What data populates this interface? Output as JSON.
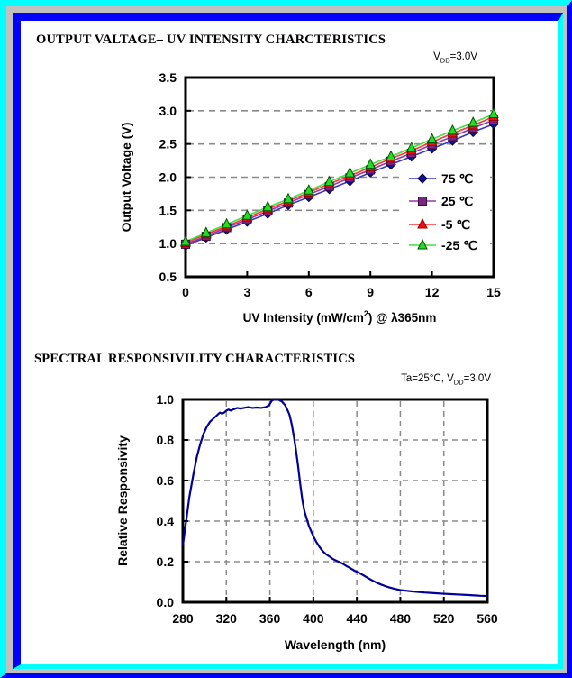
{
  "page": {
    "frame_colors": {
      "cyan": "#00ffff",
      "blue": "#0000ff",
      "gray": "#c0c0c0"
    },
    "section1": {
      "title": "OUTPUT VALTAGE– UV INTENSITY CHARCTERISTICS",
      "condition": {
        "prefix": "V",
        "sub": "DD",
        "suffix": "=3.0V"
      }
    },
    "section2": {
      "title": "SPECTRAL RESPONSIVILITY CHARACTERISTICS",
      "condition": {
        "prefix": "Ta=25°C, V",
        "sub": "DD",
        "suffix": "=3.0V"
      }
    }
  },
  "chart_data": [
    {
      "type": "line",
      "title": "Output Voltage - UV Intensity",
      "ylabel": "Output Voltage (V)",
      "xlabel_parts": [
        {
          "t": "UV Intensity (mW/cm"
        },
        {
          "t": "2",
          "sup": true
        },
        {
          "t": ") @ λ365nm"
        }
      ],
      "xlim": [
        0,
        15
      ],
      "ylim": [
        0.5,
        3.5
      ],
      "x_ticks": [
        0,
        3,
        6,
        9,
        12,
        15
      ],
      "x_tick_labels": [
        "0",
        "3",
        "6",
        "9",
        "12",
        "15"
      ],
      "y_ticks": [
        0.5,
        1.0,
        1.5,
        2.0,
        2.5,
        3.0,
        3.5
      ],
      "y_tick_labels": [
        "0.5",
        "1.0",
        "1.5",
        "2.0",
        "2.5",
        "3.0",
        "3.5"
      ],
      "gridlines_y": [
        1.0,
        1.5,
        2.0,
        2.5,
        3.0
      ],
      "grid_color": "#8a8a8a",
      "axis_color": "#000000",
      "legend_position": "inside-right",
      "x": [
        0,
        1,
        2,
        3,
        4,
        5,
        6,
        7,
        8,
        9,
        10,
        11,
        12,
        13,
        14,
        15
      ],
      "series": [
        {
          "name": "75 ℃",
          "marker": "diamond",
          "line_color": "#3a3ab8",
          "marker_color": "#141491",
          "marker_edge": "#00004d",
          "values": [
            0.97,
            1.09,
            1.21,
            1.33,
            1.45,
            1.58,
            1.7,
            1.82,
            1.94,
            2.07,
            2.19,
            2.31,
            2.43,
            2.55,
            2.68,
            2.8
          ]
        },
        {
          "name": "25 ℃",
          "marker": "square",
          "line_color": "#9933aa",
          "marker_color": "#7b2483",
          "marker_edge": "#3a0b40",
          "values": [
            0.99,
            1.11,
            1.24,
            1.36,
            1.49,
            1.61,
            1.74,
            1.86,
            1.99,
            2.11,
            2.24,
            2.36,
            2.49,
            2.61,
            2.74,
            2.86
          ]
        },
        {
          "name": "-5 ℃",
          "marker": "triangle",
          "line_color": "#ff3333",
          "marker_color": "#ee1111",
          "marker_edge": "#990000",
          "values": [
            1.01,
            1.14,
            1.26,
            1.39,
            1.52,
            1.64,
            1.77,
            1.9,
            2.02,
            2.15,
            2.28,
            2.4,
            2.53,
            2.66,
            2.78,
            2.91
          ]
        },
        {
          "name": "-25 ℃",
          "marker": "triangle",
          "line_color": "#44dd44",
          "marker_color": "#22dd22",
          "marker_edge": "#005500",
          "values": [
            1.03,
            1.16,
            1.29,
            1.42,
            1.55,
            1.67,
            1.8,
            1.93,
            2.06,
            2.19,
            2.31,
            2.44,
            2.57,
            2.7,
            2.82,
            2.95
          ]
        }
      ]
    },
    {
      "type": "line",
      "title": "Spectral Responsivity",
      "ylabel": "Relative Responsivity",
      "xlabel": "Wavelength (nm)",
      "xlim": [
        280,
        560
      ],
      "ylim": [
        0.0,
        1.0
      ],
      "x_ticks": [
        280,
        320,
        360,
        400,
        440,
        480,
        520,
        560
      ],
      "x_tick_labels": [
        "280",
        "320",
        "360",
        "400",
        "440",
        "480",
        "520",
        "560"
      ],
      "y_ticks": [
        0.0,
        0.2,
        0.4,
        0.6,
        0.8,
        1.0
      ],
      "y_tick_labels": [
        "0.0",
        "0.2",
        "0.4",
        "0.6",
        "0.8",
        "1.0"
      ],
      "gridlines_y": [
        0.2,
        0.4,
        0.6,
        0.8
      ],
      "gridlines_x": [
        320,
        360,
        400,
        440,
        480,
        520
      ],
      "grid_color": "#8a8a8a",
      "axis_color": "#000000",
      "line_color": "#000099",
      "points": [
        [
          280,
          0.28
        ],
        [
          282,
          0.36
        ],
        [
          284,
          0.44
        ],
        [
          286,
          0.52
        ],
        [
          288,
          0.58
        ],
        [
          290,
          0.64
        ],
        [
          293,
          0.72
        ],
        [
          296,
          0.78
        ],
        [
          299,
          0.83
        ],
        [
          302,
          0.865
        ],
        [
          305,
          0.89
        ],
        [
          308,
          0.905
        ],
        [
          311,
          0.92
        ],
        [
          314,
          0.935
        ],
        [
          316,
          0.93
        ],
        [
          318,
          0.935
        ],
        [
          320,
          0.945
        ],
        [
          322,
          0.95
        ],
        [
          324,
          0.945
        ],
        [
          327,
          0.952
        ],
        [
          330,
          0.958
        ],
        [
          333,
          0.955
        ],
        [
          336,
          0.958
        ],
        [
          340,
          0.962
        ],
        [
          344,
          0.958
        ],
        [
          348,
          0.96
        ],
        [
          352,
          0.958
        ],
        [
          356,
          0.962
        ],
        [
          359,
          0.97
        ],
        [
          362,
          0.995
        ],
        [
          365,
          1.0
        ],
        [
          368,
          0.998
        ],
        [
          371,
          0.99
        ],
        [
          374,
          0.972
        ],
        [
          376,
          0.95
        ],
        [
          378,
          0.925
        ],
        [
          380,
          0.88
        ],
        [
          382,
          0.82
        ],
        [
          384,
          0.75
        ],
        [
          386,
          0.67
        ],
        [
          388,
          0.58
        ],
        [
          390,
          0.5
        ],
        [
          392,
          0.445
        ],
        [
          394,
          0.41
        ],
        [
          396,
          0.375
        ],
        [
          398,
          0.35
        ],
        [
          400,
          0.325
        ],
        [
          403,
          0.295
        ],
        [
          406,
          0.27
        ],
        [
          409,
          0.25
        ],
        [
          412,
          0.235
        ],
        [
          415,
          0.225
        ],
        [
          418,
          0.213
        ],
        [
          421,
          0.205
        ],
        [
          424,
          0.198
        ],
        [
          427,
          0.19
        ],
        [
          430,
          0.18
        ],
        [
          434,
          0.168
        ],
        [
          438,
          0.155
        ],
        [
          442,
          0.145
        ],
        [
          446,
          0.133
        ],
        [
          450,
          0.12
        ],
        [
          454,
          0.108
        ],
        [
          458,
          0.097
        ],
        [
          462,
          0.088
        ],
        [
          466,
          0.08
        ],
        [
          470,
          0.073
        ],
        [
          475,
          0.066
        ],
        [
          480,
          0.06
        ],
        [
          485,
          0.057
        ],
        [
          490,
          0.054
        ],
        [
          496,
          0.051
        ],
        [
          502,
          0.048
        ],
        [
          508,
          0.046
        ],
        [
          514,
          0.044
        ],
        [
          520,
          0.042
        ],
        [
          527,
          0.04
        ],
        [
          534,
          0.038
        ],
        [
          541,
          0.036
        ],
        [
          548,
          0.034
        ],
        [
          554,
          0.032
        ],
        [
          560,
          0.031
        ]
      ]
    }
  ]
}
